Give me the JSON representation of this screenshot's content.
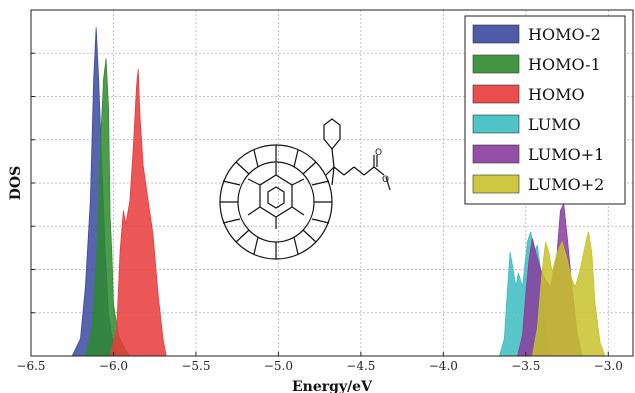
{
  "chart_data": {
    "type": "area",
    "title": "",
    "xlabel": "Energy/eV",
    "ylabel": "DOS",
    "xlim": [
      -6.5,
      -2.85
    ],
    "ylim": [
      0,
      1.0
    ],
    "xticks": [
      -6.5,
      -6.0,
      -5.5,
      -5.0,
      -4.5,
      -4.0,
      -3.5,
      -3.0
    ],
    "xtick_labels": [
      "−6.5",
      "−6.0",
      "−5.5",
      "−5.0",
      "−4.5",
      "−4.0",
      "−3.5",
      "−3.0"
    ],
    "grid": true,
    "legend_position": "top-right",
    "series": [
      {
        "name": "HOMO-2",
        "color": "#3a49a0",
        "points": [
          [
            -6.25,
            0
          ],
          [
            -6.2,
            0.05
          ],
          [
            -6.17,
            0.2
          ],
          [
            -6.14,
            0.45
          ],
          [
            -6.12,
            0.8
          ],
          [
            -6.105,
            0.95
          ],
          [
            -6.09,
            0.8
          ],
          [
            -6.07,
            0.55
          ],
          [
            -6.05,
            0.3
          ],
          [
            -6.03,
            0.12
          ],
          [
            -6.0,
            0.03
          ],
          [
            -5.97,
            0
          ]
        ]
      },
      {
        "name": "HOMO-1",
        "color": "#2e8b2e",
        "points": [
          [
            -6.17,
            0
          ],
          [
            -6.13,
            0.08
          ],
          [
            -6.1,
            0.3
          ],
          [
            -6.08,
            0.6
          ],
          [
            -6.06,
            0.8
          ],
          [
            -6.045,
            0.86
          ],
          [
            -6.03,
            0.72
          ],
          [
            -6.02,
            0.4
          ],
          [
            -6.01,
            0.3
          ],
          [
            -6.0,
            0.15
          ],
          [
            -5.97,
            0.06
          ],
          [
            -5.93,
            0.02
          ],
          [
            -5.9,
            0
          ]
        ]
      },
      {
        "name": "HOMO",
        "color": "#e83a3a",
        "points": [
          [
            -6.02,
            0
          ],
          [
            -5.98,
            0.08
          ],
          [
            -5.96,
            0.3
          ],
          [
            -5.94,
            0.42
          ],
          [
            -5.925,
            0.38
          ],
          [
            -5.9,
            0.45
          ],
          [
            -5.88,
            0.6
          ],
          [
            -5.86,
            0.78
          ],
          [
            -5.85,
            0.83
          ],
          [
            -5.84,
            0.7
          ],
          [
            -5.82,
            0.55
          ],
          [
            -5.79,
            0.45
          ],
          [
            -5.76,
            0.35
          ],
          [
            -5.73,
            0.18
          ],
          [
            -5.7,
            0.05
          ],
          [
            -5.68,
            0
          ]
        ]
      },
      {
        "name": "LUMO",
        "color": "#3cbcc0",
        "points": [
          [
            -3.66,
            0
          ],
          [
            -3.63,
            0.05
          ],
          [
            -3.61,
            0.2
          ],
          [
            -3.595,
            0.3
          ],
          [
            -3.58,
            0.26
          ],
          [
            -3.56,
            0.2
          ],
          [
            -3.545,
            0.24
          ],
          [
            -3.52,
            0.2
          ],
          [
            -3.49,
            0.33
          ],
          [
            -3.47,
            0.36
          ],
          [
            -3.45,
            0.3
          ],
          [
            -3.43,
            0.32
          ],
          [
            -3.41,
            0.25
          ],
          [
            -3.38,
            0.08
          ],
          [
            -3.35,
            0
          ]
        ]
      },
      {
        "name": "LUMO+1",
        "color": "#8a3c9c",
        "points": [
          [
            -3.55,
            0
          ],
          [
            -3.52,
            0.06
          ],
          [
            -3.5,
            0.18
          ],
          [
            -3.48,
            0.28
          ],
          [
            -3.46,
            0.34
          ],
          [
            -3.44,
            0.3
          ],
          [
            -3.41,
            0.25
          ],
          [
            -3.38,
            0.22
          ],
          [
            -3.35,
            0.2
          ],
          [
            -3.31,
            0.3
          ],
          [
            -3.29,
            0.42
          ],
          [
            -3.27,
            0.44
          ],
          [
            -3.25,
            0.35
          ],
          [
            -3.22,
            0.2
          ],
          [
            -3.19,
            0.07
          ],
          [
            -3.16,
            0
          ]
        ]
      },
      {
        "name": "LUMO+2",
        "color": "#c8c22a",
        "points": [
          [
            -3.46,
            0
          ],
          [
            -3.43,
            0.08
          ],
          [
            -3.4,
            0.25
          ],
          [
            -3.38,
            0.33
          ],
          [
            -3.36,
            0.3
          ],
          [
            -3.34,
            0.24
          ],
          [
            -3.31,
            0.3
          ],
          [
            -3.28,
            0.33
          ],
          [
            -3.25,
            0.28
          ],
          [
            -3.22,
            0.22
          ],
          [
            -3.2,
            0.2
          ],
          [
            -3.17,
            0.25
          ],
          [
            -3.14,
            0.32
          ],
          [
            -3.12,
            0.36
          ],
          [
            -3.1,
            0.3
          ],
          [
            -3.08,
            0.15
          ],
          [
            -3.05,
            0.04
          ],
          [
            -3.02,
            0
          ]
        ]
      }
    ]
  },
  "legend_fill_opacity": 0.9
}
